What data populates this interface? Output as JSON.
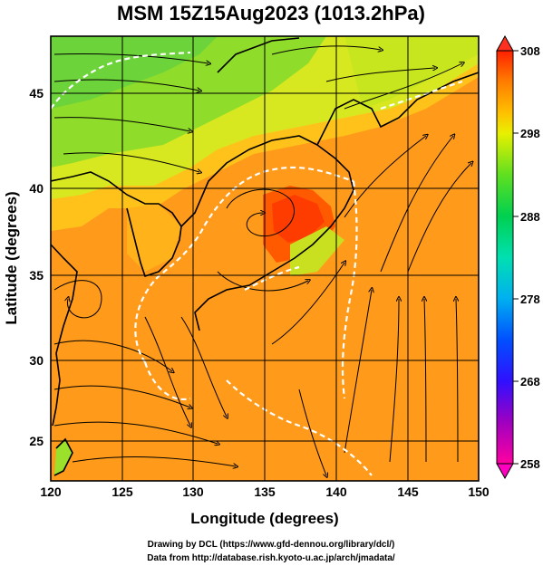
{
  "title": "MSM 15Z15Aug2023 (1013.2hPa)",
  "axes": {
    "xlabel": "Longitude (degrees)",
    "ylabel": "Latitude  (degrees)",
    "xlim": [
      120,
      150
    ],
    "ylim": [
      22.4,
      47.6
    ],
    "xticks": [
      "120",
      "125",
      "130",
      "135",
      "140",
      "145",
      "150"
    ],
    "yticks": [
      "25",
      "30",
      "35",
      "40",
      "45"
    ],
    "grid": true
  },
  "colorbar": {
    "ticks": [
      "308",
      "298",
      "288",
      "278",
      "268",
      "258"
    ],
    "range": [
      258,
      308
    ],
    "colors": [
      "#ff0090",
      "#a000c0",
      "#4000ff",
      "#0050ff",
      "#00a0ff",
      "#00e0c0",
      "#00d060",
      "#40e020",
      "#c0f000",
      "#ffd000",
      "#ff8000",
      "#ff3000"
    ]
  },
  "credits": {
    "line1": "Drawing by DCL (https://www.gfd-dennou.org/library/dcl/)",
    "line2": "Data from http://database.rish.kyoto-u.ac.jp/arch/jmadata/"
  },
  "map_colors": {
    "warm_ocean": "#ff9a1a",
    "hot_land": "#ff5a00",
    "mild": "#ffd000",
    "cool": "#a0e020",
    "green": "#60d040",
    "contour": "#ffffff",
    "streamline": "#000000"
  }
}
